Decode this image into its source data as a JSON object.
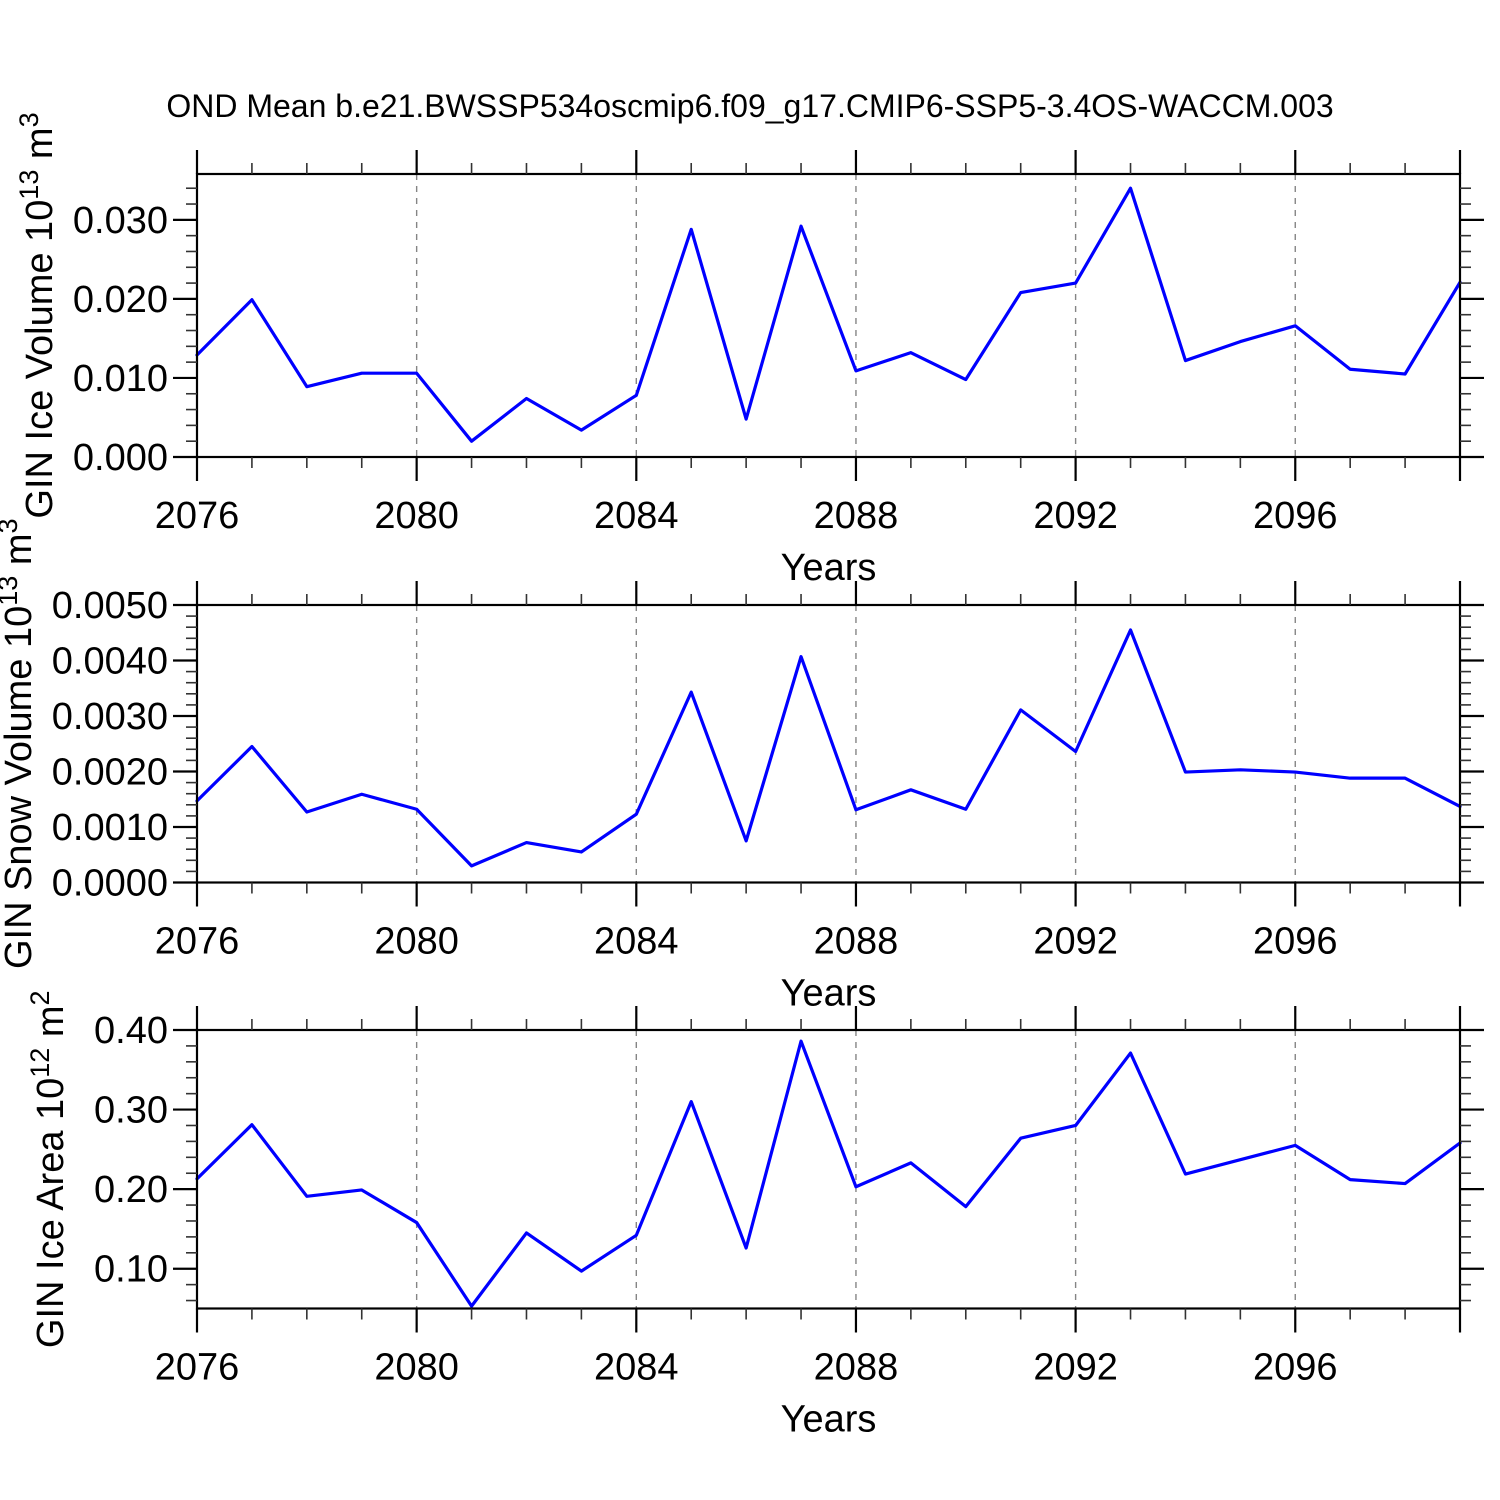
{
  "title": "OND Mean b.e21.BWSSP534oscmip6.f09_g17.CMIP6-SSP5-3.4OS-WACCM.003",
  "colors": {
    "line": "#0000ff",
    "frame": "#000000",
    "minor_tick": "#333333",
    "grid": "#858585",
    "text": "#000000",
    "background": "#ffffff"
  },
  "x_axis": {
    "label": "Years",
    "range": [
      2076,
      2099
    ],
    "major_ticks": [
      2076,
      2080,
      2084,
      2088,
      2092,
      2096
    ],
    "major_labels": [
      "2076",
      "2080",
      "2084",
      "2088",
      "2092",
      "2096"
    ],
    "gridline_years": [
      2080,
      2084,
      2088,
      2092,
      2096
    ],
    "minor_step": 1
  },
  "chart_data": [
    {
      "type": "line",
      "series_name": "GIN Ice Volume",
      "ylabel": "GIN Ice Volume 10^13 m^3",
      "ylabel_parts": [
        {
          "text": "GIN Ice Volume 10",
          "sup": false
        },
        {
          "text": "13",
          "sup": true
        },
        {
          "text": " m",
          "sup": false
        },
        {
          "text": "3",
          "sup": true
        }
      ],
      "xlabel": "Years",
      "ylim": [
        0,
        0.0358
      ],
      "y_major_ticks": [
        0.0,
        0.01,
        0.02,
        0.03
      ],
      "y_major_labels": [
        "0.000",
        "0.010",
        "0.020",
        "0.030"
      ],
      "y_minor_step": 0.002,
      "grid": "x-dashed",
      "legend": "none",
      "x": [
        2076,
        2077,
        2078,
        2079,
        2080,
        2081,
        2082,
        2083,
        2084,
        2085,
        2086,
        2087,
        2088,
        2089,
        2090,
        2091,
        2092,
        2093,
        2094,
        2095,
        2096,
        2097,
        2098,
        2099
      ],
      "values": [
        0.0129,
        0.0199,
        0.0089,
        0.0106,
        0.0106,
        0.002,
        0.0074,
        0.0034,
        0.0078,
        0.0288,
        0.0048,
        0.0292,
        0.0109,
        0.0132,
        0.0098,
        0.0208,
        0.022,
        0.034,
        0.0122,
        0.0146,
        0.0166,
        0.0111,
        0.0105,
        0.0221
      ]
    },
    {
      "type": "line",
      "series_name": "GIN Snow Volume",
      "ylabel": "GIN Snow Volume 10^13 m^3",
      "ylabel_parts": [
        {
          "text": "GIN Snow Volume 10",
          "sup": false
        },
        {
          "text": "13",
          "sup": true
        },
        {
          "text": " m",
          "sup": false
        },
        {
          "text": "3",
          "sup": true
        }
      ],
      "xlabel": "Years",
      "ylim": [
        0,
        0.005
      ],
      "y_major_ticks": [
        0.0,
        0.001,
        0.002,
        0.003,
        0.004,
        0.005
      ],
      "y_major_labels": [
        "0.0000",
        "0.0010",
        "0.0020",
        "0.0030",
        "0.0040",
        "0.0050"
      ],
      "y_minor_step": 0.0002,
      "grid": "x-dashed",
      "legend": "none",
      "x": [
        2076,
        2077,
        2078,
        2079,
        2080,
        2081,
        2082,
        2083,
        2084,
        2085,
        2086,
        2087,
        2088,
        2089,
        2090,
        2091,
        2092,
        2093,
        2094,
        2095,
        2096,
        2097,
        2098,
        2099
      ],
      "values": [
        0.00147,
        0.00245,
        0.00127,
        0.00159,
        0.00132,
        0.0003,
        0.00072,
        0.00055,
        0.00123,
        0.00343,
        0.00075,
        0.00407,
        0.00131,
        0.00167,
        0.00132,
        0.00311,
        0.00236,
        0.00455,
        0.00199,
        0.00203,
        0.00199,
        0.00188,
        0.00188,
        0.00137
      ]
    },
    {
      "type": "line",
      "series_name": "GIN Ice Area",
      "ylabel": "GIN Ice Area 10^12 m^2",
      "ylabel_parts": [
        {
          "text": "GIN Ice Area 10",
          "sup": false
        },
        {
          "text": "12",
          "sup": true
        },
        {
          "text": " m",
          "sup": false
        },
        {
          "text": "2",
          "sup": true
        }
      ],
      "xlabel": "Years",
      "ylim": [
        0.05,
        0.4
      ],
      "y_major_ticks": [
        0.1,
        0.2,
        0.3,
        0.4
      ],
      "y_major_labels": [
        "0.10",
        "0.20",
        "0.30",
        "0.40"
      ],
      "y_minor_step": 0.02,
      "grid": "x-dashed",
      "legend": "none",
      "x": [
        2076,
        2077,
        2078,
        2079,
        2080,
        2081,
        2082,
        2083,
        2084,
        2085,
        2086,
        2087,
        2088,
        2089,
        2090,
        2091,
        2092,
        2093,
        2094,
        2095,
        2096,
        2097,
        2098,
        2099
      ],
      "values": [
        0.213,
        0.281,
        0.191,
        0.199,
        0.158,
        0.053,
        0.145,
        0.097,
        0.142,
        0.31,
        0.126,
        0.386,
        0.203,
        0.233,
        0.178,
        0.264,
        0.28,
        0.371,
        0.219,
        0.237,
        0.255,
        0.212,
        0.207,
        0.258
      ]
    }
  ]
}
